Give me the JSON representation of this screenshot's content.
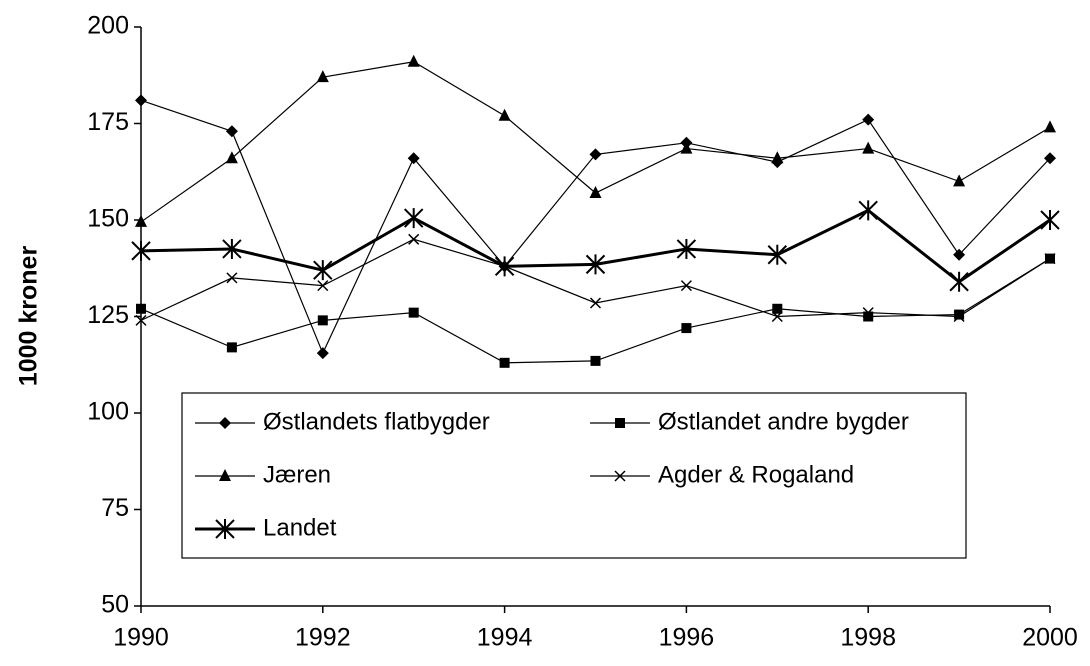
{
  "chart_data": {
    "type": "line",
    "y_label": "1000 kroner",
    "x": [
      1990,
      1991,
      1992,
      1993,
      1994,
      1995,
      1996,
      1997,
      1998,
      1999,
      2000
    ],
    "series": [
      {
        "name": "Østlandets flatbygder",
        "color": "#000000",
        "marker": "diamond",
        "line_width": 1.2,
        "values": [
          181,
          173,
          115.5,
          166,
          138,
          167,
          170,
          165,
          176,
          141,
          166
        ]
      },
      {
        "name": "Østlandet andre bygder",
        "color": "#000000",
        "marker": "square",
        "line_width": 1.2,
        "values": [
          127,
          117,
          124,
          126,
          113,
          113.5,
          122,
          127,
          125,
          125.5,
          140
        ]
      },
      {
        "name": "Jæren",
        "color": "#000000",
        "marker": "triangle",
        "line_width": 1.2,
        "values": [
          149.5,
          166,
          187,
          191,
          177,
          157,
          168.5,
          166,
          168.5,
          160,
          174
        ]
      },
      {
        "name": "Agder & Rogaland",
        "color": "#000000",
        "marker": "x",
        "line_width": 1.2,
        "values": [
          124,
          135,
          133,
          145,
          138,
          128.5,
          133,
          125,
          126,
          125,
          140
        ]
      },
      {
        "name": "Landet",
        "color": "#000000",
        "marker": "star",
        "line_width": 3,
        "values": [
          142,
          142.5,
          137,
          150.5,
          138,
          138.5,
          142.5,
          141,
          152.5,
          134,
          150
        ]
      }
    ],
    "xlim": [
      1990,
      2000
    ],
    "xticks": [
      1990,
      1992,
      1994,
      1996,
      1998,
      2000
    ],
    "ylim": [
      50,
      200
    ],
    "yticks": [
      50,
      75,
      100,
      125,
      150,
      175,
      200
    ],
    "grid": false,
    "legend": "lower-left"
  }
}
